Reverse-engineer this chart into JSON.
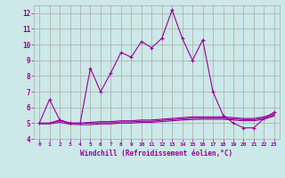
{
  "xlabel": "Windchill (Refroidissement éolien,°C)",
  "background_color": "#cce8e8",
  "grid_color": "#aaaaaa",
  "line_color": "#990099",
  "xlim": [
    -0.5,
    23.5
  ],
  "ylim": [
    4,
    12.5
  ],
  "xticks": [
    0,
    1,
    2,
    3,
    4,
    5,
    6,
    7,
    8,
    9,
    10,
    11,
    12,
    13,
    14,
    15,
    16,
    17,
    18,
    19,
    20,
    21,
    22,
    23
  ],
  "yticks": [
    4,
    5,
    6,
    7,
    8,
    9,
    10,
    11,
    12
  ],
  "series1_x": [
    0,
    1,
    2,
    3,
    4,
    5,
    6,
    7,
    8,
    9,
    10,
    11,
    12,
    13,
    14,
    15,
    16,
    17,
    18,
    19,
    20,
    21,
    22,
    23
  ],
  "series1_y": [
    5.0,
    6.5,
    5.2,
    5.0,
    5.0,
    8.5,
    7.0,
    8.2,
    9.5,
    9.2,
    10.2,
    9.8,
    10.4,
    12.2,
    10.4,
    9.0,
    10.3,
    7.0,
    5.5,
    5.0,
    4.7,
    4.7,
    5.3,
    5.7
  ],
  "series2_x": [
    0,
    1,
    2,
    3,
    4,
    5,
    6,
    7,
    8,
    9,
    10,
    11,
    12,
    13,
    14,
    15,
    16,
    17,
    18,
    19,
    20,
    21,
    22,
    23
  ],
  "series2_y": [
    5.0,
    5.0,
    5.2,
    5.0,
    5.0,
    5.05,
    5.1,
    5.1,
    5.15,
    5.15,
    5.2,
    5.2,
    5.25,
    5.3,
    5.35,
    5.4,
    5.4,
    5.4,
    5.4,
    5.35,
    5.3,
    5.3,
    5.4,
    5.6
  ],
  "series3_x": [
    0,
    1,
    2,
    3,
    4,
    5,
    6,
    7,
    8,
    9,
    10,
    11,
    12,
    13,
    14,
    15,
    16,
    17,
    18,
    19,
    20,
    21,
    22,
    23
  ],
  "series3_y": [
    5.0,
    5.0,
    5.15,
    5.0,
    4.98,
    5.0,
    5.02,
    5.02,
    5.08,
    5.08,
    5.12,
    5.12,
    5.18,
    5.22,
    5.27,
    5.32,
    5.32,
    5.32,
    5.32,
    5.27,
    5.22,
    5.22,
    5.32,
    5.52
  ],
  "series4_x": [
    0,
    1,
    2,
    3,
    4,
    5,
    6,
    7,
    8,
    9,
    10,
    11,
    12,
    13,
    14,
    15,
    16,
    17,
    18,
    19,
    20,
    21,
    22,
    23
  ],
  "series4_y": [
    4.95,
    4.95,
    5.05,
    4.93,
    4.9,
    4.9,
    4.95,
    4.95,
    5.0,
    5.0,
    5.05,
    5.05,
    5.1,
    5.15,
    5.2,
    5.23,
    5.25,
    5.25,
    5.25,
    5.2,
    5.15,
    5.15,
    5.25,
    5.45
  ]
}
